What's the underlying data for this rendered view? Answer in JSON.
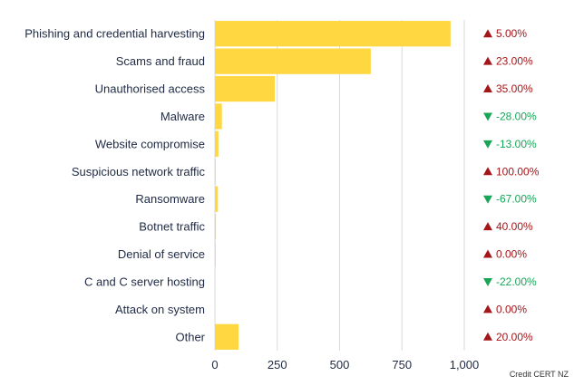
{
  "chart_data": {
    "type": "bar",
    "orientation": "horizontal",
    "categories": [
      "Phishing and credential harvesting",
      "Scams and fraud",
      "Unauthorised access",
      "Malware",
      "Website compromise",
      "Suspicious network traffic",
      "Ransomware",
      "Botnet traffic",
      "Denial of service",
      "C and C server hosting",
      "Attack on system",
      "Other"
    ],
    "values": [
      945,
      625,
      240,
      28,
      14,
      3,
      12,
      4,
      3,
      1,
      1,
      95
    ],
    "changes": [
      "5.00%",
      "23.00%",
      "35.00%",
      "-28.00%",
      "-13.00%",
      "100.00%",
      "-67.00%",
      "40.00%",
      "0.00%",
      "-22.00%",
      "0.00%",
      "20.00%"
    ],
    "change_direction": [
      "up",
      "up",
      "up",
      "down",
      "down",
      "up",
      "down",
      "up",
      "up",
      "down",
      "up",
      "up"
    ],
    "x_ticks": [
      0,
      250,
      500,
      750,
      1000
    ],
    "x_tick_labels": [
      "0",
      "250",
      "500",
      "750",
      "1,000"
    ],
    "xlim": [
      0,
      1000
    ],
    "grid": true,
    "colors": {
      "bar": "#FFD740",
      "up": "#A4161A",
      "down": "#18A558",
      "grid": "#D9D9D9",
      "text": "#1F2A44"
    }
  },
  "credit": "Credit CERT NZ"
}
